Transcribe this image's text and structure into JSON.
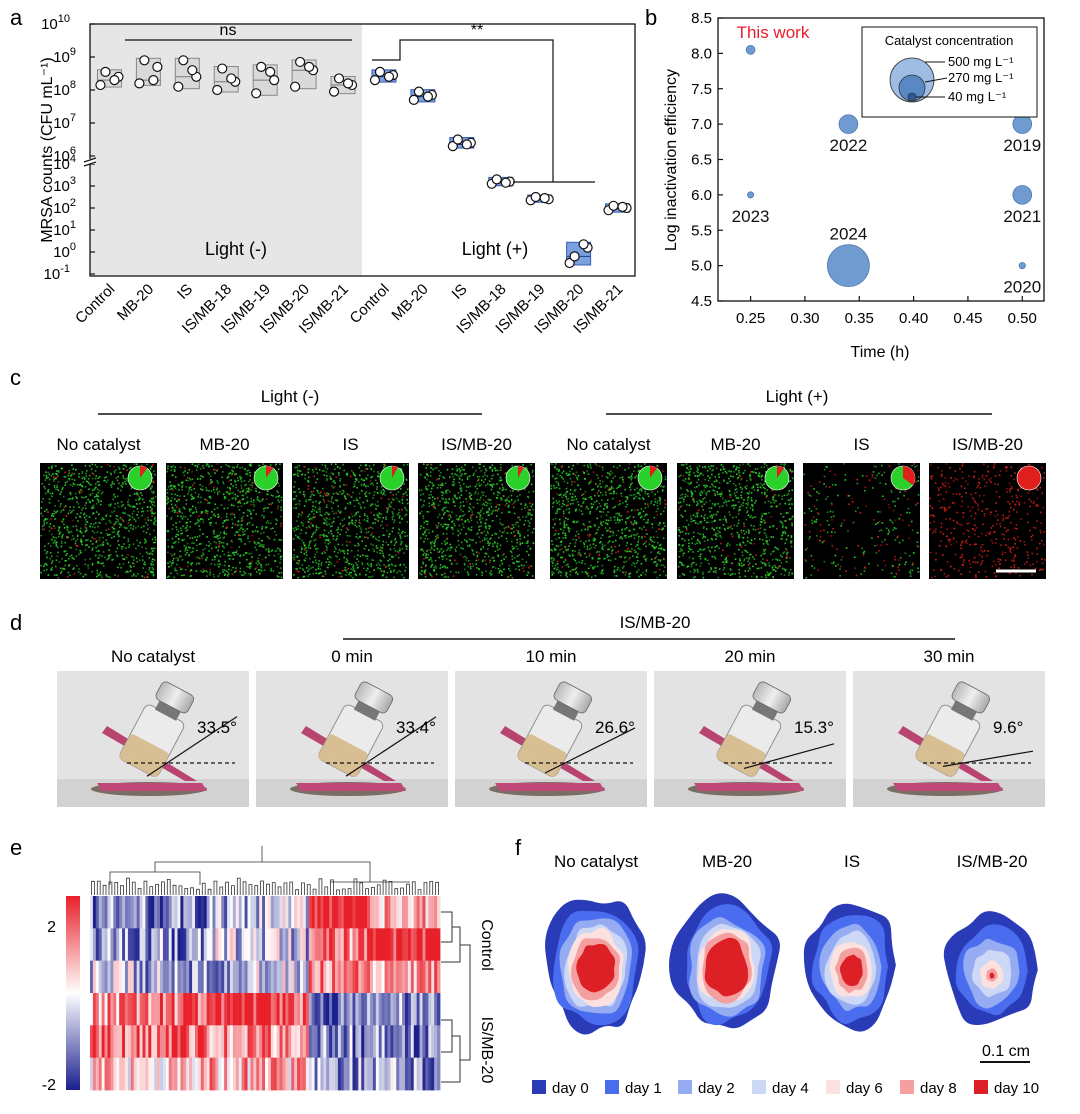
{
  "panel_labels": {
    "a": "a",
    "b": "b",
    "c": "c",
    "d": "d",
    "e": "e",
    "f": "f"
  },
  "colors": {
    "grey_box": "#d9d9d9",
    "blue_box": "#7aa0e0",
    "bubble": "#6f9bd1",
    "highlight": "#e6e6e6",
    "red_text": "#e8202a",
    "live": "#2bd12b",
    "dead": "#e0201c"
  },
  "chart_data": [
    {
      "id": "panel-a",
      "type": "box-scatter",
      "ylabel": "MRSA counts (CFU mL⁻¹)",
      "ytick_labels": [
        {
          "base": "10",
          "exp": "-1"
        },
        {
          "base": "10",
          "exp": "0"
        },
        {
          "base": "10",
          "exp": "1"
        },
        {
          "base": "10",
          "exp": "2"
        },
        {
          "base": "10",
          "exp": "3"
        },
        {
          "base": "10",
          "exp": "4"
        },
        {
          "base": "10",
          "exp": "6"
        },
        {
          "base": "10",
          "exp": "7"
        },
        {
          "base": "10",
          "exp": "8"
        },
        {
          "base": "10",
          "exp": "9"
        },
        {
          "base": "10",
          "exp": "10"
        }
      ],
      "categories": [
        "Control",
        "MB-20",
        "IS",
        "IS/MB-18",
        "IS/MB-19",
        "IS/MB-20",
        "IS/MB-21",
        "Control",
        "MB-20",
        "IS",
        "IS/MB-18",
        "IS/MB-19",
        "IS/MB-20",
        "IS/MB-21"
      ],
      "groups": [
        {
          "label": "Light (-)",
          "members": [
            0,
            1,
            2,
            3,
            4,
            5,
            6
          ],
          "color": "#d9d9d9"
        },
        {
          "label": "Light (+)",
          "members": [
            7,
            8,
            9,
            10,
            11,
            12,
            13
          ],
          "color": "#7aa0e0"
        }
      ],
      "log10_points": [
        [
          8.15,
          8.4,
          8.55,
          8.3
        ],
        [
          8.2,
          8.7,
          8.9,
          8.3
        ],
        [
          8.1,
          8.4,
          8.9,
          8.6
        ],
        [
          8.0,
          8.25,
          8.65,
          8.35
        ],
        [
          7.9,
          8.3,
          8.7,
          8.55
        ],
        [
          8.1,
          8.6,
          8.85,
          8.7
        ],
        [
          7.95,
          8.15,
          8.35,
          8.2
        ],
        [
          8.3,
          8.45,
          8.55,
          8.4
        ],
        [
          7.7,
          7.85,
          7.95,
          7.8
        ],
        [
          6.3,
          6.4,
          6.5,
          6.35
        ],
        [
          3.1,
          3.2,
          3.3,
          3.15
        ],
        [
          2.35,
          2.4,
          2.5,
          2.45
        ],
        [
          -0.5,
          0.2,
          -0.2,
          0.35
        ],
        [
          1.9,
          2.0,
          2.1,
          2.05
        ]
      ],
      "annotations": [
        {
          "text": "ns",
          "between": "Light (-)"
        },
        {
          "text": "**",
          "between": "Control vs IS/MB-20"
        }
      ]
    },
    {
      "id": "panel-b",
      "type": "bubble",
      "xlabel": "Time (h)",
      "ylabel": "Log inactivation efficiency",
      "xlim": [
        0.22,
        0.52
      ],
      "ylim": [
        4.5,
        8.5
      ],
      "xticks": [
        0.25,
        0.3,
        0.35,
        0.4,
        0.45,
        0.5
      ],
      "xtick_labels": [
        "0.25",
        "0.30",
        "0.35",
        "0.40",
        "0.45",
        "0.50"
      ],
      "yticks": [
        4.5,
        5.0,
        5.5,
        6.0,
        6.5,
        7.0,
        7.5,
        8.0,
        8.5
      ],
      "ytick_labels": [
        "4.5",
        "5.0",
        "5.5",
        "6.0",
        "6.5",
        "7.0",
        "7.5",
        "8.0",
        "8.5"
      ],
      "points": [
        {
          "x": 0.25,
          "y": 8.05,
          "conc": 40,
          "label": "This work"
        },
        {
          "x": 0.25,
          "y": 6.0,
          "conc": 20,
          "label": "2023"
        },
        {
          "x": 0.34,
          "y": 7.0,
          "conc": 180,
          "label": "2022"
        },
        {
          "x": 0.34,
          "y": 5.0,
          "conc": 900,
          "label": "2024"
        },
        {
          "x": 0.5,
          "y": 7.0,
          "conc": 180,
          "label": "2019"
        },
        {
          "x": 0.5,
          "y": 6.0,
          "conc": 180,
          "label": "2021"
        },
        {
          "x": 0.5,
          "y": 5.0,
          "conc": 20,
          "label": "2020"
        }
      ],
      "legend": {
        "title": "Catalyst concentration",
        "entries": [
          "500 mg L⁻¹",
          "270 mg L⁻¹",
          "40 mg L⁻¹"
        ]
      }
    },
    {
      "id": "panel-c-pies",
      "type": "pie",
      "title_left": "Light (-)",
      "title_right": "Light (+)",
      "labels": [
        "No catalyst",
        "MB-20",
        "IS",
        "IS/MB-20",
        "No catalyst",
        "MB-20",
        "IS",
        "IS/MB-20"
      ],
      "dead_fraction": [
        0.1,
        0.1,
        0.08,
        0.08,
        0.1,
        0.1,
        0.35,
        1.0
      ]
    },
    {
      "id": "panel-d-angles",
      "type": "table",
      "group_label": "IS/MB-20",
      "labels": [
        "No catalyst",
        "0 min",
        "10 min",
        "20 min",
        "30 min"
      ],
      "angles_deg": [
        33.5,
        33.4,
        26.6,
        15.3,
        9.6
      ],
      "angle_labels": [
        "33.5°",
        "33.4°",
        "26.6°",
        "15.3°",
        "9.6°"
      ]
    },
    {
      "id": "panel-e",
      "type": "heatmap",
      "colorbar_ticks": [
        "2",
        "-2"
      ],
      "colorbar_range": [
        -2,
        2
      ],
      "row_groups": [
        "Control",
        "IS/MB-20"
      ],
      "rows": 6,
      "row_pattern": [
        [
          -0.8,
          -0.8,
          -0.6,
          -0.3,
          1.6,
          0.4
        ],
        [
          -0.6,
          -0.7,
          -0.3,
          -0.4,
          0.9,
          1.5
        ],
        [
          -0.4,
          -0.5,
          -0.4,
          -0.3,
          0.6,
          0.5
        ],
        [
          0.6,
          0.9,
          1.3,
          1.1,
          -1.0,
          -0.7
        ],
        [
          0.9,
          1.0,
          0.6,
          0.7,
          -0.7,
          -0.8
        ],
        [
          0.3,
          0.4,
          0.5,
          0.5,
          -0.6,
          -0.6
        ]
      ]
    },
    {
      "id": "panel-f",
      "type": "contour",
      "titles": [
        "No catalyst",
        "MB-20",
        "IS",
        "IS/MB-20"
      ],
      "scale_bar": "0.1 cm",
      "legend": [
        {
          "label": "day 0",
          "color": "#2a3bb8"
        },
        {
          "label": "day 1",
          "color": "#4a6df0"
        },
        {
          "label": "day 2",
          "color": "#95acf2"
        },
        {
          "label": "day 4",
          "color": "#cdd8f6"
        },
        {
          "label": "day 6",
          "color": "#fbe1df"
        },
        {
          "label": "day 8",
          "color": "#f4a0a0"
        },
        {
          "label": "day 10",
          "color": "#dd2026"
        }
      ]
    }
  ]
}
